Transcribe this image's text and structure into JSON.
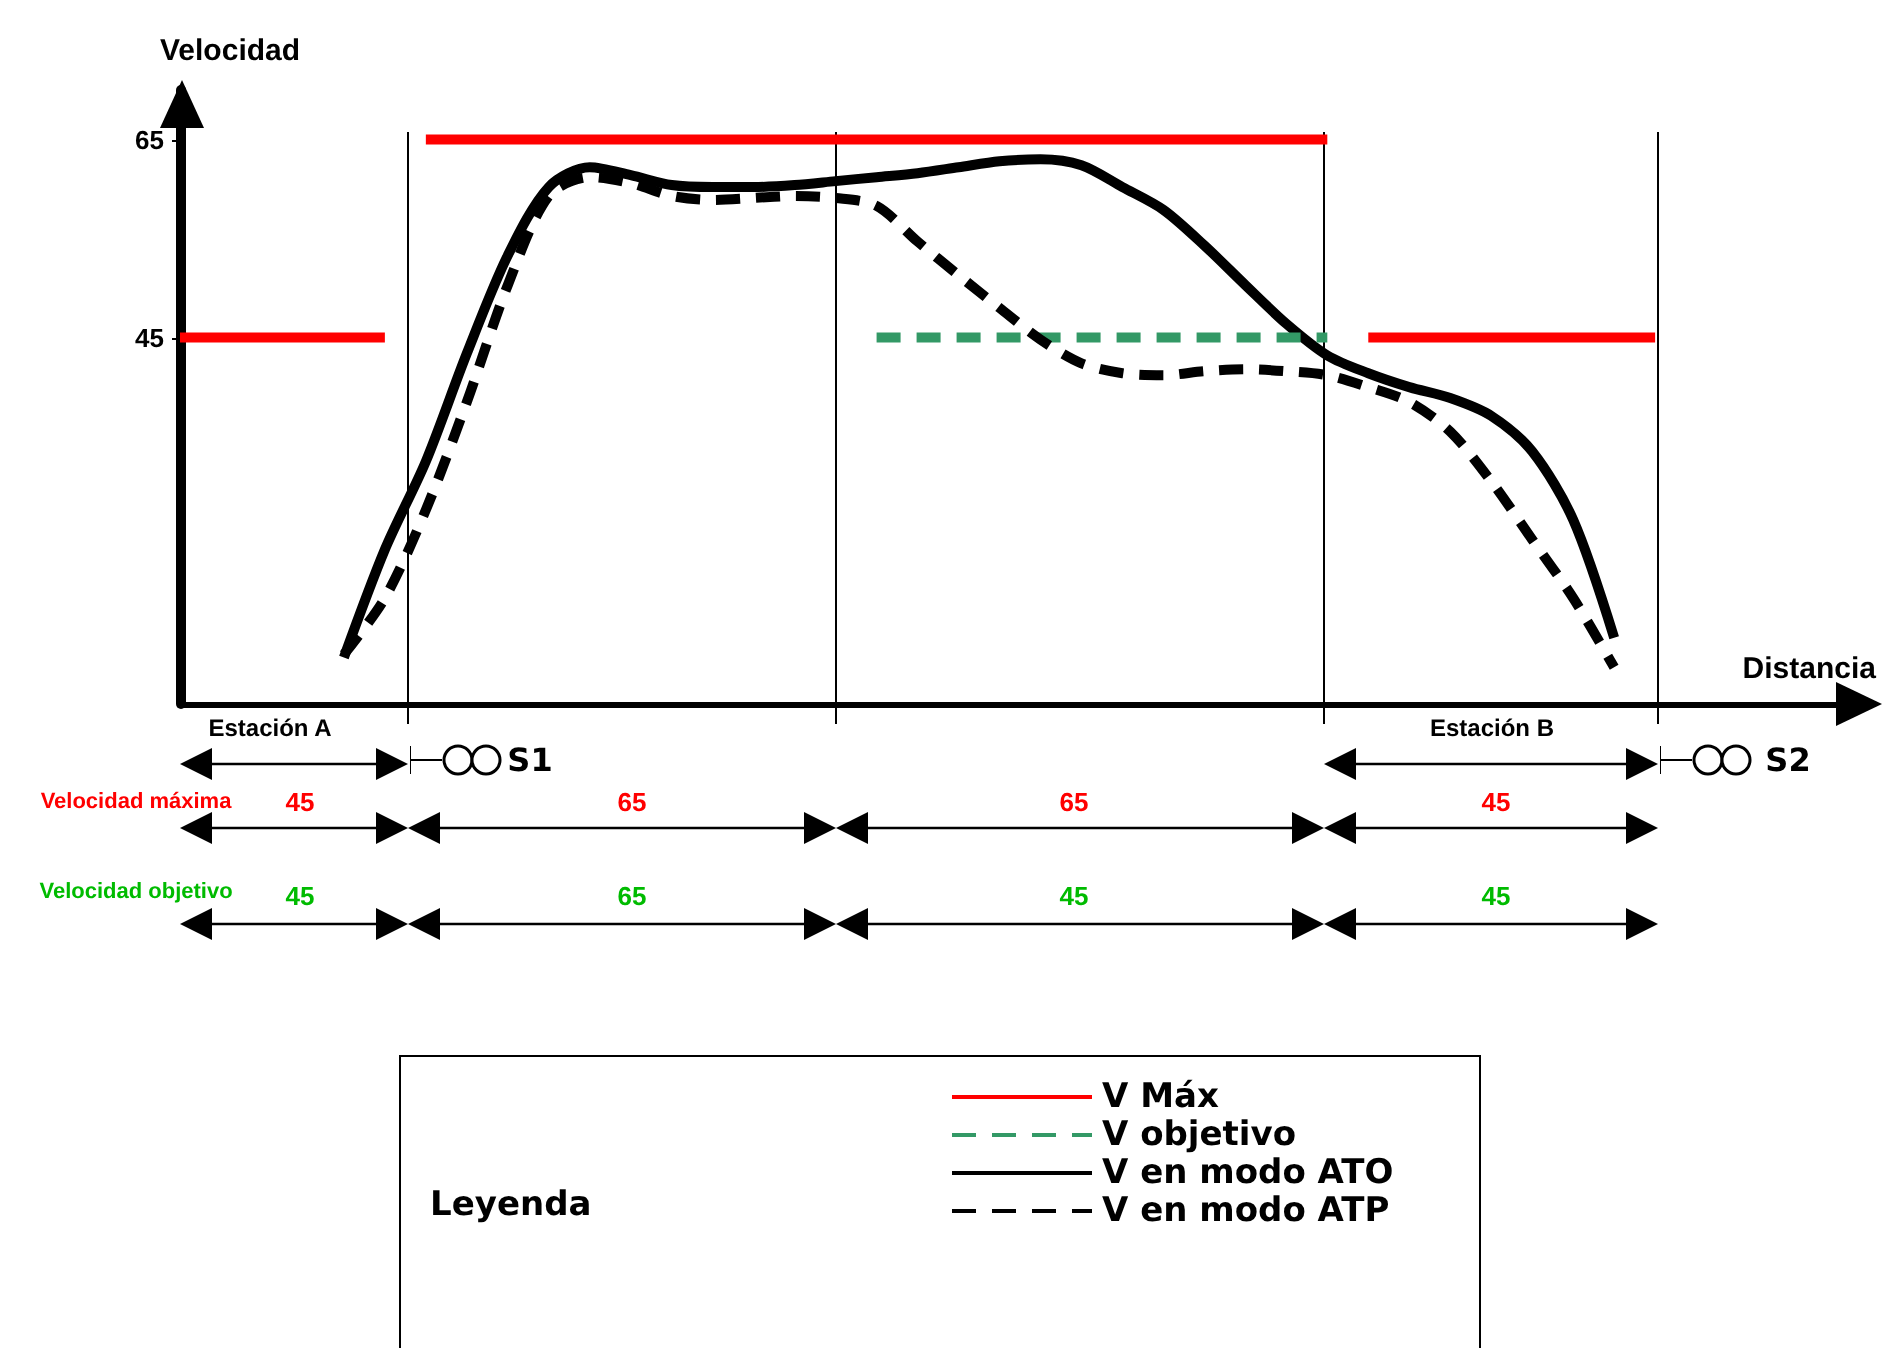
{
  "chart_data": {
    "type": "line",
    "xlabel": "Distancia",
    "ylabel": "Velocidad",
    "legend_title": "Leyenda",
    "legend": "bottom",
    "grid": false,
    "tick_labels": "y",
    "marker": "none",
    "categories": [
      null,
      null,
      null,
      null,
      null,
      null,
      null,
      null,
      null,
      null,
      null,
      null,
      null,
      null,
      null,
      null,
      null,
      null,
      null,
      null,
      null,
      null,
      null,
      null,
      null,
      null,
      null,
      null,
      null,
      null,
      null,
      null,
      null,
      null,
      null,
      null,
      null,
      null,
      null,
      null,
      null,
      null
    ],
    "ylim": [
      8,
      70
    ],
    "yticks": [
      45,
      65
    ],
    "series": [
      {
        "name": "V Máx",
        "color": "#ff0000",
        "line_style": "solid",
        "values": [
          45,
          45,
          45,
          45,
          45,
          45,
          null,
          null,
          null,
          null,
          null,
          null,
          null,
          null,
          null,
          null,
          null,
          null,
          null,
          null,
          null,
          null,
          null,
          null,
          null,
          null,
          null,
          null,
          null,
          null,
          null,
          null,
          null,
          null,
          null,
          null,
          null,
          null,
          null,
          null,
          null,
          null
        ]
      },
      {
        "color": "#ff0000",
        "line_style": "solid",
        "values": [
          null,
          null,
          null,
          null,
          null,
          null,
          65,
          65,
          65,
          65,
          65,
          65,
          65,
          65,
          65,
          65,
          65,
          65,
          65,
          65,
          65,
          65,
          65,
          65,
          65,
          65,
          65,
          65,
          65,
          null,
          null,
          null,
          null,
          null,
          null,
          null,
          null,
          null,
          null,
          null,
          null,
          null
        ]
      },
      {
        "color": "#ff0000",
        "line_style": "solid",
        "values": [
          null,
          null,
          null,
          null,
          null,
          null,
          null,
          null,
          null,
          null,
          null,
          null,
          null,
          null,
          null,
          null,
          null,
          null,
          null,
          null,
          null,
          null,
          null,
          null,
          null,
          null,
          null,
          null,
          null,
          45,
          45,
          45,
          45,
          45,
          45,
          45,
          45,
          null,
          null,
          null,
          null,
          null
        ]
      },
      {
        "name": "V objetivo",
        "color": "#339966",
        "line_style": "dashed",
        "values": [
          null,
          null,
          null,
          null,
          null,
          null,
          null,
          null,
          null,
          null,
          null,
          null,
          null,
          null,
          null,
          null,
          null,
          45,
          45,
          45,
          45,
          45,
          45,
          45,
          45,
          45,
          45,
          45,
          45,
          null,
          null,
          null,
          null,
          null,
          null,
          null,
          null,
          null,
          null,
          null,
          null,
          null
        ]
      },
      {
        "name": "V en modo ATO",
        "color": "#000000",
        "line_style": "solid",
        "values": [
          null,
          null,
          null,
          null,
          12.7,
          23.6,
          32.5,
          43.4,
          53.3,
          60.2,
          62.2,
          61.4,
          60.4,
          60.2,
          60.2,
          60.4,
          60.8,
          61.2,
          61.6,
          62.2,
          62.8,
          63,
          62.4,
          60.2,
          57.9,
          54.3,
          50.3,
          46.4,
          43.2,
          41.4,
          40,
          38.9,
          37.1,
          33.5,
          26.6,
          14.7,
          null,
          null,
          null,
          null,
          null,
          null
        ]
      },
      {
        "name": "V en modo ATP",
        "color": "#000000",
        "line_style": "dashed",
        "values": [
          null,
          null,
          null,
          null,
          13,
          18.7,
          27.6,
          38.5,
          50.3,
          59.3,
          61.2,
          60.6,
          59.3,
          58.9,
          59.1,
          59.3,
          59.1,
          58.3,
          54.7,
          51.3,
          48,
          44.8,
          42.4,
          41.4,
          41.2,
          41.6,
          41.8,
          41.6,
          41.2,
          40,
          38.5,
          35.5,
          30.5,
          24.6,
          18.7,
          11.7,
          null,
          null,
          null,
          null,
          null,
          null
        ]
      }
    ],
    "annotations": [
      "Estación A",
      "S1",
      "Estación B",
      "S2",
      "Velocidad máxima",
      "45",
      "65",
      "65",
      "45",
      "Velocidad objetivo",
      "45",
      "65",
      "45",
      "45"
    ]
  }
}
